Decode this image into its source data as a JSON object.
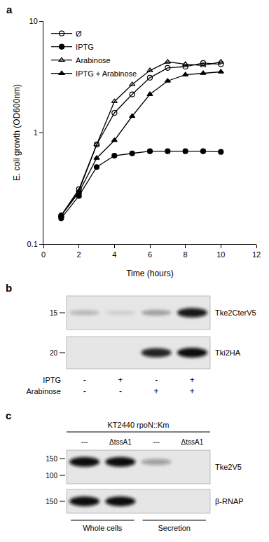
{
  "chart_data": {
    "type": "line",
    "panel": "a",
    "x_label": "Time (hours)",
    "y_label": "E. coli growth (OD600nm)",
    "log": "y",
    "grid": false,
    "legend": "upper left",
    "xlim": [
      0,
      12
    ],
    "xticks": [
      0,
      2,
      4,
      6,
      8,
      10,
      12
    ],
    "ylim": [
      0.1,
      10
    ],
    "yticks": [
      0.1,
      1,
      10
    ],
    "x": [
      1,
      2,
      3,
      4,
      5,
      6,
      7,
      8,
      9,
      10
    ],
    "series": [
      {
        "name": "Ø",
        "color": "#000000",
        "marker": "circle-open",
        "line_style": "solid",
        "values": [
          0.18,
          0.31,
          0.78,
          1.5,
          2.2,
          3.1,
          3.8,
          3.9,
          4.2,
          4.1
        ]
      },
      {
        "name": "IPTG",
        "color": "#000000",
        "marker": "circle",
        "line_style": "solid",
        "values": [
          0.17,
          0.27,
          0.49,
          0.62,
          0.65,
          0.68,
          0.68,
          0.68,
          0.68,
          0.67
        ]
      },
      {
        "name": "Arabinose",
        "color": "#000000",
        "marker": "triangle-up-open",
        "line_style": "solid",
        "values": [
          0.18,
          0.3,
          0.78,
          1.9,
          2.7,
          3.6,
          4.3,
          4.1,
          4.0,
          4.3
        ]
      },
      {
        "name": "IPTG + Arabinose",
        "color": "#000000",
        "marker": "triangle-up",
        "line_style": "solid",
        "values": [
          0.18,
          0.29,
          0.59,
          0.85,
          1.4,
          2.2,
          2.9,
          3.3,
          3.4,
          3.5
        ]
      }
    ]
  },
  "blot_b": {
    "panel": "b",
    "blots": [
      {
        "label": "Tke2CterV5",
        "markers": [
          15
        ],
        "bands": [
          0.2,
          0.1,
          0.3,
          0.95
        ]
      },
      {
        "label": "Tki2HA",
        "markers": [
          20
        ],
        "bands": [
          0,
          0,
          0.9,
          1
        ]
      }
    ],
    "conditions": [
      {
        "label": "IPTG",
        "lanes": [
          "-",
          "+",
          "-",
          "+"
        ]
      },
      {
        "label": "Arabinose",
        "lanes": [
          "-",
          "-",
          "+",
          "+"
        ]
      }
    ]
  },
  "blot_c": {
    "panel": "c",
    "strain": "KT2440 rpoN::Km",
    "lanes": [
      "---",
      "ΔtssA1",
      "---",
      "ΔtssA1"
    ],
    "blots": [
      {
        "label": "Tke2V5",
        "markers": [
          150,
          100
        ],
        "bands": [
          1,
          1,
          0.35,
          0
        ]
      },
      {
        "label": "β-RNAP",
        "markers": [
          150
        ],
        "bands": [
          1,
          1,
          0,
          0
        ]
      }
    ],
    "groups": [
      "Whole cells",
      "Secretion"
    ]
  }
}
